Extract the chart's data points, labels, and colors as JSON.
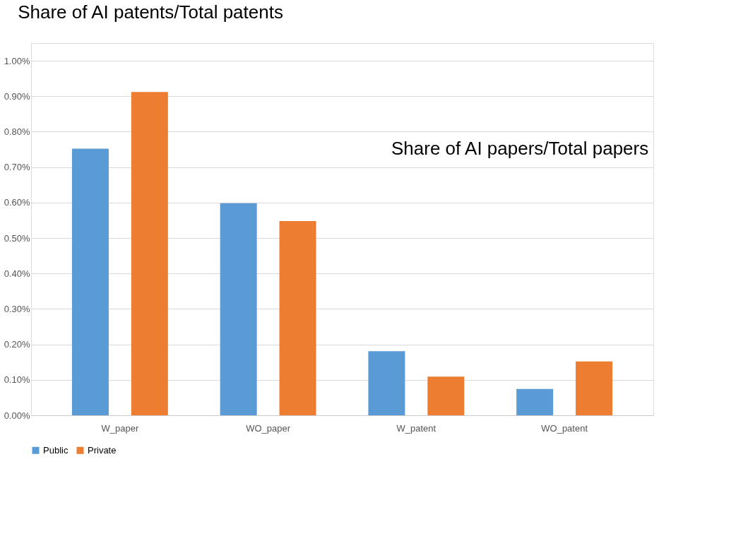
{
  "chart_data": {
    "type": "bar",
    "title": "Share of AI patents/Total patents",
    "annotations": [
      "Share of AI papers/Total papers"
    ],
    "categories": [
      "W_paper",
      "WO_paper",
      "W_patent",
      "WO_patent"
    ],
    "series": [
      {
        "name": "Public",
        "color": "#5b9bd5",
        "values": [
          0.752,
          0.598,
          0.181,
          0.074
        ]
      },
      {
        "name": "Private",
        "color": "#ed7d31",
        "values": [
          0.912,
          0.548,
          0.109,
          0.152
        ]
      }
    ],
    "ylim": [
      0,
      1.05
    ],
    "yticks": [
      {
        "value": 0,
        "label": "0.00%"
      },
      {
        "value": 0.1,
        "label": "0.10%"
      },
      {
        "value": 0.2,
        "label": "0.20%"
      },
      {
        "value": 0.3,
        "label": "0.30%"
      },
      {
        "value": 0.4,
        "label": "0.40%"
      },
      {
        "value": 0.5,
        "label": "0.50%"
      },
      {
        "value": 0.6,
        "label": "0.60%"
      },
      {
        "value": 0.7,
        "label": "0.70%"
      },
      {
        "value": 0.8,
        "label": "0.80%"
      },
      {
        "value": 0.9,
        "label": "0.90%"
      },
      {
        "value": 1.0,
        "label": "1.00%"
      }
    ],
    "grid": "y",
    "legend": "bottom"
  }
}
